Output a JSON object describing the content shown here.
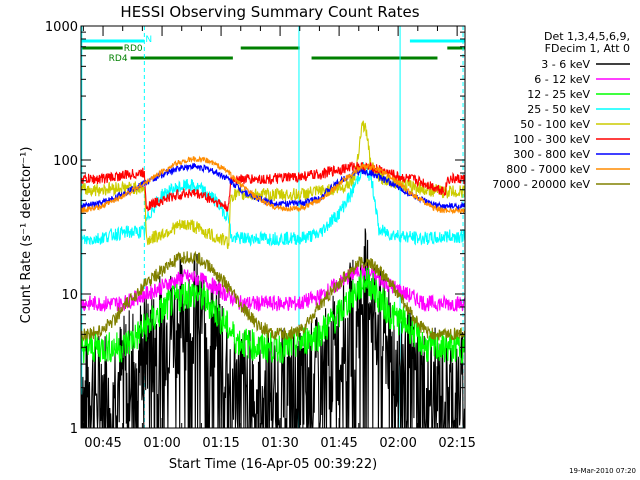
{
  "chart_data": {
    "type": "line",
    "title": "HESSI Observing Summary Count Rates",
    "xlabel": "Start Time (16-Apr-05 00:39:22)",
    "ylabel": "Count Rate (s⁻¹ detector⁻¹)",
    "y_scale": "log",
    "ylim": [
      1,
      1000
    ],
    "xlim_minutes": [
      39.4,
      137.0
    ],
    "x_ticks": [
      {
        "label": "00:45",
        "minute": 45
      },
      {
        "label": "01:00",
        "minute": 60
      },
      {
        "label": "01:15",
        "minute": 75
      },
      {
        "label": "01:30",
        "minute": 90
      },
      {
        "label": "01:45",
        "minute": 105
      },
      {
        "label": "02:00",
        "minute": 120
      },
      {
        "label": "02:15",
        "minute": 135
      }
    ],
    "y_ticks": [
      {
        "label": "1",
        "value": 1
      },
      {
        "label": "10",
        "value": 10
      },
      {
        "label": "100",
        "value": 100
      },
      {
        "label": "1000",
        "value": 1000
      }
    ],
    "legend_header": [
      "Det 1,3,4,5,6,9,",
      "FDecim 1, Att 0"
    ],
    "legend_placement": "right",
    "series": [
      {
        "name": "3 - 6 keV",
        "color": "#000000",
        "points": [
          [
            39.4,
            2
          ],
          [
            44,
            2
          ],
          [
            50,
            2.5
          ],
          [
            54,
            3.5
          ],
          [
            57,
            4.5
          ],
          [
            62,
            6
          ],
          [
            66,
            7.5
          ],
          [
            68,
            8
          ],
          [
            72,
            6
          ],
          [
            75,
            4.5
          ],
          [
            78,
            2.3
          ],
          [
            85,
            2
          ],
          [
            92,
            2
          ],
          [
            100,
            2.5
          ],
          [
            105,
            4
          ],
          [
            110,
            8
          ],
          [
            112,
            12
          ],
          [
            115,
            6
          ],
          [
            118,
            4
          ],
          [
            122,
            3
          ],
          [
            127,
            2
          ],
          [
            132,
            2
          ],
          [
            137,
            2
          ]
        ]
      },
      {
        "name": "6 - 12 keV",
        "color": "#ff00ff",
        "points": [
          [
            39.4,
            8.5
          ],
          [
            44,
            8.5
          ],
          [
            50,
            8.5
          ],
          [
            56,
            10
          ],
          [
            62,
            12
          ],
          [
            66,
            13.5
          ],
          [
            69,
            13
          ],
          [
            72,
            12
          ],
          [
            75,
            10.5
          ],
          [
            80,
            8.5
          ],
          [
            88,
            8.5
          ],
          [
            95,
            8.5
          ],
          [
            100,
            9.5
          ],
          [
            105,
            12
          ],
          [
            110,
            15
          ],
          [
            113,
            14
          ],
          [
            117,
            12
          ],
          [
            122,
            10
          ],
          [
            127,
            8.5
          ],
          [
            132,
            8.5
          ],
          [
            137,
            8.5
          ]
        ]
      },
      {
        "name": "12 - 25 keV",
        "color": "#00ff00",
        "points": [
          [
            39.4,
            4
          ],
          [
            44,
            4
          ],
          [
            50,
            4
          ],
          [
            54,
            5
          ],
          [
            58,
            6.5
          ],
          [
            62,
            8.5
          ],
          [
            66,
            10
          ],
          [
            69,
            10
          ],
          [
            72,
            8.5
          ],
          [
            75,
            6.5
          ],
          [
            79,
            4.5
          ],
          [
            85,
            4
          ],
          [
            92,
            4
          ],
          [
            100,
            5
          ],
          [
            105,
            7
          ],
          [
            110,
            11
          ],
          [
            112,
            13
          ],
          [
            115,
            9.5
          ],
          [
            118,
            7
          ],
          [
            122,
            6
          ],
          [
            127,
            4
          ],
          [
            132,
            4
          ],
          [
            137,
            4
          ]
        ]
      },
      {
        "name": "25 - 50 keV",
        "color": "#00ffff",
        "points": [
          [
            39.4,
            25
          ],
          [
            44,
            26
          ],
          [
            48,
            28
          ],
          [
            52,
            29
          ],
          [
            55.5,
            29
          ],
          [
            56,
            35
          ],
          [
            60,
            55
          ],
          [
            64,
            62
          ],
          [
            67,
            65
          ],
          [
            70,
            60
          ],
          [
            73,
            52
          ],
          [
            76,
            40
          ],
          [
            77,
            38
          ],
          [
            77.5,
            26
          ],
          [
            82,
            26
          ],
          [
            88,
            26
          ],
          [
            95,
            26
          ],
          [
            100,
            28
          ],
          [
            105,
            40
          ],
          [
            108,
            55
          ],
          [
            110,
            75
          ],
          [
            111,
            90
          ],
          [
            113,
            75
          ],
          [
            115,
            30
          ],
          [
            118,
            28
          ],
          [
            125,
            26
          ],
          [
            130,
            26
          ],
          [
            132,
            27
          ],
          [
            137,
            27
          ]
        ]
      },
      {
        "name": "50 - 100 keV",
        "color": "#cccc00",
        "points": [
          [
            39.4,
            60
          ],
          [
            44,
            60
          ],
          [
            48,
            62
          ],
          [
            52,
            62
          ],
          [
            55.5,
            62
          ],
          [
            56,
            25
          ],
          [
            60,
            28
          ],
          [
            64,
            32
          ],
          [
            67,
            33
          ],
          [
            70,
            30
          ],
          [
            73,
            27
          ],
          [
            76,
            25
          ],
          [
            77,
            24
          ],
          [
            77.5,
            55
          ],
          [
            82,
            55
          ],
          [
            88,
            55
          ],
          [
            95,
            55
          ],
          [
            98,
            57
          ],
          [
            103,
            60
          ],
          [
            106,
            62
          ],
          [
            109,
            75
          ],
          [
            110,
            120
          ],
          [
            111,
            190
          ],
          [
            112,
            160
          ],
          [
            113,
            90
          ],
          [
            115,
            75
          ],
          [
            118,
            70
          ],
          [
            122,
            65
          ],
          [
            125,
            62
          ],
          [
            128,
            60
          ],
          [
            131,
            58
          ],
          [
            132,
            58
          ],
          [
            137,
            58
          ]
        ]
      },
      {
        "name": "100 - 300 keV",
        "color": "#ff0000",
        "points": [
          [
            39.4,
            72
          ],
          [
            44,
            72
          ],
          [
            48,
            75
          ],
          [
            52,
            78
          ],
          [
            55.5,
            80
          ],
          [
            56,
            45
          ],
          [
            60,
            50
          ],
          [
            64,
            55
          ],
          [
            67,
            57
          ],
          [
            70,
            55
          ],
          [
            73,
            50
          ],
          [
            76,
            45
          ],
          [
            77,
            44
          ],
          [
            77.5,
            72
          ],
          [
            82,
            72
          ],
          [
            88,
            72
          ],
          [
            95,
            75
          ],
          [
            100,
            78
          ],
          [
            105,
            85
          ],
          [
            109,
            90
          ],
          [
            112,
            88
          ],
          [
            115,
            85
          ],
          [
            120,
            75
          ],
          [
            125,
            70
          ],
          [
            128,
            65
          ],
          [
            131,
            60
          ],
          [
            132,
            58
          ],
          [
            132.5,
            72
          ],
          [
            137,
            72
          ]
        ]
      },
      {
        "name": "300 - 800 keV",
        "color": "#0000ff",
        "points": [
          [
            39.4,
            45
          ],
          [
            44,
            47
          ],
          [
            48,
            52
          ],
          [
            52,
            60
          ],
          [
            57,
            70
          ],
          [
            61,
            80
          ],
          [
            65,
            88
          ],
          [
            68,
            90
          ],
          [
            72,
            85
          ],
          [
            76,
            75
          ],
          [
            80,
            60
          ],
          [
            84,
            52
          ],
          [
            88,
            48
          ],
          [
            92,
            47
          ],
          [
            96,
            48
          ],
          [
            100,
            52
          ],
          [
            104,
            65
          ],
          [
            107,
            75
          ],
          [
            110,
            82
          ],
          [
            113,
            80
          ],
          [
            117,
            70
          ],
          [
            121,
            60
          ],
          [
            125,
            52
          ],
          [
            128,
            47
          ],
          [
            131,
            45
          ],
          [
            137,
            45
          ]
        ]
      },
      {
        "name": "800 - 7000 keV",
        "color": "#ff8c00",
        "points": [
          [
            39.4,
            42
          ],
          [
            44,
            44
          ],
          [
            48,
            50
          ],
          [
            52,
            58
          ],
          [
            56,
            68
          ],
          [
            60,
            82
          ],
          [
            64,
            95
          ],
          [
            68,
            102
          ],
          [
            72,
            98
          ],
          [
            76,
            85
          ],
          [
            80,
            65
          ],
          [
            84,
            52
          ],
          [
            88,
            45
          ],
          [
            92,
            43
          ],
          [
            96,
            44
          ],
          [
            100,
            50
          ],
          [
            104,
            62
          ],
          [
            108,
            78
          ],
          [
            111,
            90
          ],
          [
            114,
            88
          ],
          [
            118,
            75
          ],
          [
            122,
            60
          ],
          [
            126,
            50
          ],
          [
            129,
            44
          ],
          [
            131,
            42
          ],
          [
            137,
            42
          ]
        ]
      },
      {
        "name": "7000 - 20000 keV",
        "color": "#808000",
        "points": [
          [
            39.4,
            5
          ],
          [
            44,
            5.2
          ],
          [
            48,
            6.5
          ],
          [
            52,
            9
          ],
          [
            56,
            12
          ],
          [
            60,
            15
          ],
          [
            64,
            18
          ],
          [
            67,
            19
          ],
          [
            70,
            18
          ],
          [
            73,
            15
          ],
          [
            76,
            12
          ],
          [
            80,
            8
          ],
          [
            84,
            6
          ],
          [
            88,
            5
          ],
          [
            92,
            5
          ],
          [
            96,
            5.5
          ],
          [
            100,
            8
          ],
          [
            104,
            11
          ],
          [
            107,
            14
          ],
          [
            110,
            17
          ],
          [
            113,
            17
          ],
          [
            116,
            14
          ],
          [
            119,
            11
          ],
          [
            122,
            8
          ],
          [
            125,
            6
          ],
          [
            128,
            5
          ],
          [
            131,
            5
          ],
          [
            137,
            5
          ]
        ]
      }
    ],
    "segments": [
      {
        "label": "N",
        "color": "#00ffff",
        "level": "top",
        "ranges": [
          [
            39.4,
            55.5
          ],
          [
            123,
            137
          ]
        ]
      },
      {
        "label": "RD0",
        "color": "#008000",
        "level": "middle",
        "ranges": [
          [
            39.4,
            50
          ],
          [
            80,
            95
          ],
          [
            132.5,
            137
          ]
        ]
      },
      {
        "label": "RD4",
        "color": "#008000",
        "level": "bottom",
        "ranges": [
          [
            52,
            78
          ],
          [
            98,
            130
          ]
        ]
      }
    ],
    "vlines": [
      {
        "minute": 39.6,
        "style": "solid"
      },
      {
        "minute": 55.5,
        "style": "dashed"
      },
      {
        "minute": 94.8,
        "style": "solid"
      },
      {
        "minute": 120.5,
        "style": "solid"
      },
      {
        "minute": 136.5,
        "style": "dashed"
      }
    ],
    "footer_date": "19-Mar-2010 07:20"
  }
}
